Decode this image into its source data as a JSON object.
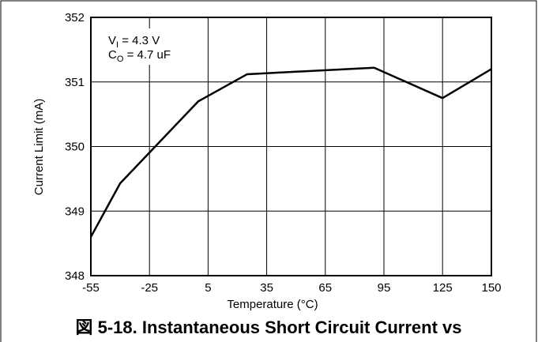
{
  "chart_data": {
    "type": "line",
    "title": "図 5-18. Instantaneous Short Circuit Current vs",
    "xlabel": "Temperature (°C)",
    "ylabel": "Current Limit (mA)",
    "annotations": [
      {
        "text": "V",
        "sub": "I",
        "after": " = 4.3 V"
      },
      {
        "text": "C",
        "sub": "O",
        "after": " = 4.7 uF"
      }
    ],
    "x": [
      -55,
      -40,
      0,
      25,
      90,
      125,
      150
    ],
    "series": [
      {
        "name": "Current Limit",
        "color": "#000000",
        "values": [
          348.6,
          349.43,
          350.7,
          351.12,
          351.22,
          350.75,
          351.2
        ]
      }
    ],
    "xlim": [
      -55,
      150
    ],
    "xticks": [
      -55,
      -25,
      5,
      35,
      65,
      95,
      125,
      150
    ],
    "ylim": [
      348,
      352
    ],
    "yticks": [
      348,
      349,
      350,
      351,
      352
    ],
    "grid": true
  }
}
